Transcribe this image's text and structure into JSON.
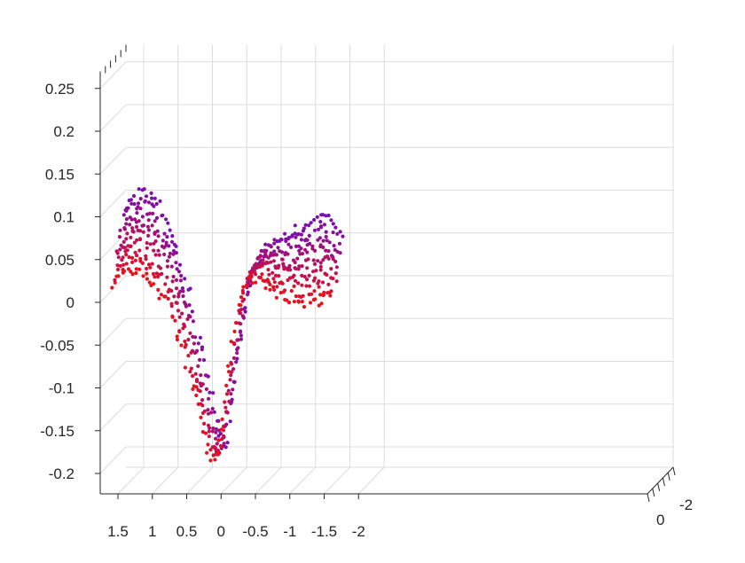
{
  "chart_data": {
    "type": "scatter",
    "projection": "3d",
    "title": "",
    "xlabel": "",
    "ylabel": "",
    "zlabel": "",
    "x_axis": {
      "range": [
        1.5,
        -2
      ],
      "reversed": true,
      "ticks": [
        "1.5",
        "1",
        "0.5",
        "0",
        "-0.5",
        "-1",
        "-1.5",
        "-2"
      ]
    },
    "z_axis": {
      "range": [
        -0.2,
        0.25
      ],
      "ticks": [
        "-0.2",
        "-0.15",
        "-0.1",
        "-0.05",
        "0",
        "0.05",
        "0.1",
        "0.15",
        "0.2",
        "0.25"
      ]
    },
    "depth_axis": {
      "ticks": [
        "0",
        "-2"
      ]
    },
    "grid": true,
    "colors": {
      "near": "#e8121c",
      "far": "#7a0fb0",
      "grid": "#dcdcdc",
      "axis": "#262626"
    },
    "series": [
      {
        "color_range": "red (front) to purple (back)",
        "profile": [
          {
            "x": 1.5,
            "y_front": 0.02,
            "y_back": 0.11
          },
          {
            "x": 1.25,
            "y_front": 0.04,
            "y_back": 0.13
          },
          {
            "x": 1.0,
            "y_front": 0.03,
            "y_back": 0.12
          },
          {
            "x": 0.75,
            "y_front": 0.0,
            "y_back": 0.07
          },
          {
            "x": 0.5,
            "y_front": -0.05,
            "y_back": 0.0
          },
          {
            "x": 0.25,
            "y_front": -0.12,
            "y_back": -0.09
          },
          {
            "x": 0.1,
            "y_front": -0.18,
            "y_back": -0.15
          },
          {
            "x": 0.0,
            "y_front": -0.18,
            "y_back": -0.17
          },
          {
            "x": -0.1,
            "y_front": -0.14,
            "y_back": -0.1
          },
          {
            "x": -0.25,
            "y_front": -0.04,
            "y_back": -0.02
          },
          {
            "x": -0.4,
            "y_front": 0.02,
            "y_back": 0.04
          },
          {
            "x": -0.6,
            "y_front": 0.03,
            "y_back": 0.07
          },
          {
            "x": -0.9,
            "y_front": 0.01,
            "y_back": 0.08
          },
          {
            "x": -1.2,
            "y_front": 0.0,
            "y_back": 0.09
          },
          {
            "x": -1.45,
            "y_front": 0.0,
            "y_back": 0.1
          },
          {
            "x": -1.7,
            "y_front": 0.01,
            "y_back": 0.08
          }
        ]
      }
    ]
  }
}
